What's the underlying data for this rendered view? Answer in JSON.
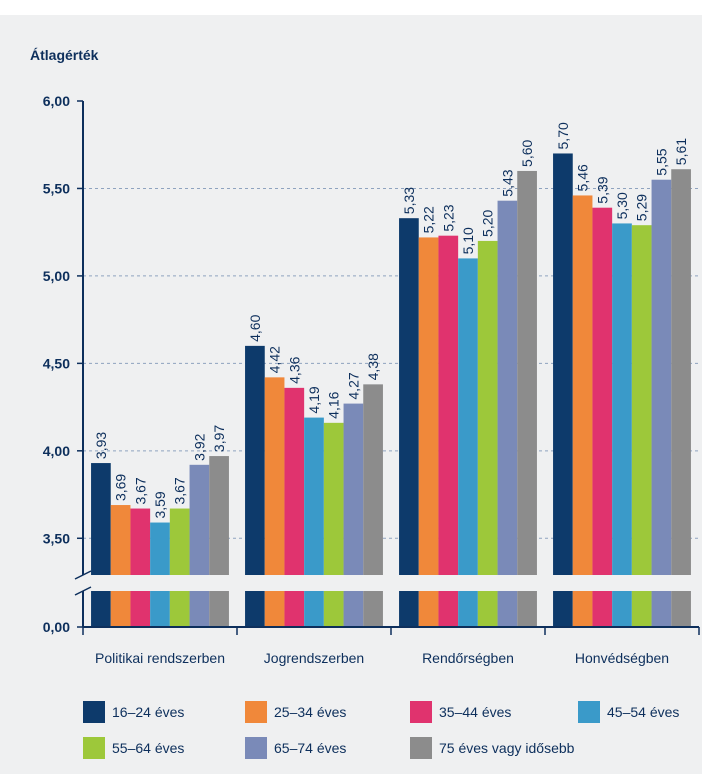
{
  "chart_data": {
    "type": "bar",
    "title": "Átlagérték",
    "categories": [
      "Politikai rendszerben",
      "Jogrendszerben",
      "Rendőrségben",
      "Honvédségben"
    ],
    "series": [
      {
        "name": "16–24 éves",
        "color": "#0d3a6b",
        "values": [
          3.93,
          4.6,
          5.33,
          5.7
        ],
        "value_labels": [
          "3,93",
          "4,60",
          "5,33",
          "5,70"
        ]
      },
      {
        "name": "25–34 éves",
        "color": "#f0883a",
        "values": [
          3.69,
          4.42,
          5.22,
          5.46
        ],
        "value_labels": [
          "3,69",
          "4,42",
          "5,22",
          "5,46"
        ]
      },
      {
        "name": "35–44 éves",
        "color": "#e0336e",
        "values": [
          3.67,
          4.36,
          5.23,
          5.39
        ],
        "value_labels": [
          "3,67",
          "4,36",
          "5,23",
          "5,39"
        ]
      },
      {
        "name": "45–54 éves",
        "color": "#3a9ac9",
        "values": [
          3.59,
          4.19,
          5.1,
          5.3
        ],
        "value_labels": [
          "3,59",
          "4,19",
          "5,10",
          "5,30"
        ]
      },
      {
        "name": "55–64 éves",
        "color": "#9dc83a",
        "values": [
          3.67,
          4.16,
          5.2,
          5.29
        ],
        "value_labels": [
          "3,67",
          "4,16",
          "5,20",
          "5,29"
        ]
      },
      {
        "name": "65–74 éves",
        "color": "#7a8ab8",
        "values": [
          3.92,
          4.27,
          5.43,
          5.55
        ],
        "value_labels": [
          "3,92",
          "4,27",
          "5,43",
          "5,55"
        ]
      },
      {
        "name": "75 éves vagy idősebb",
        "color": "#8c8c8c",
        "values": [
          3.97,
          4.38,
          5.6,
          5.61
        ],
        "value_labels": [
          "3,97",
          "4,38",
          "5,60",
          "5,61"
        ]
      }
    ],
    "ylim": [
      0,
      6
    ],
    "yticks": [
      {
        "value": 0,
        "label": "0,00"
      },
      {
        "value": 3.5,
        "label": "3,50"
      },
      {
        "value": 4,
        "label": "4,00"
      },
      {
        "value": 4.5,
        "label": "4,50"
      },
      {
        "value": 5,
        "label": "5,00"
      },
      {
        "value": 5.5,
        "label": "5,50"
      },
      {
        "value": 6,
        "label": "6,00"
      }
    ],
    "axis_break": true,
    "grid": true,
    "legend": "bottom"
  }
}
